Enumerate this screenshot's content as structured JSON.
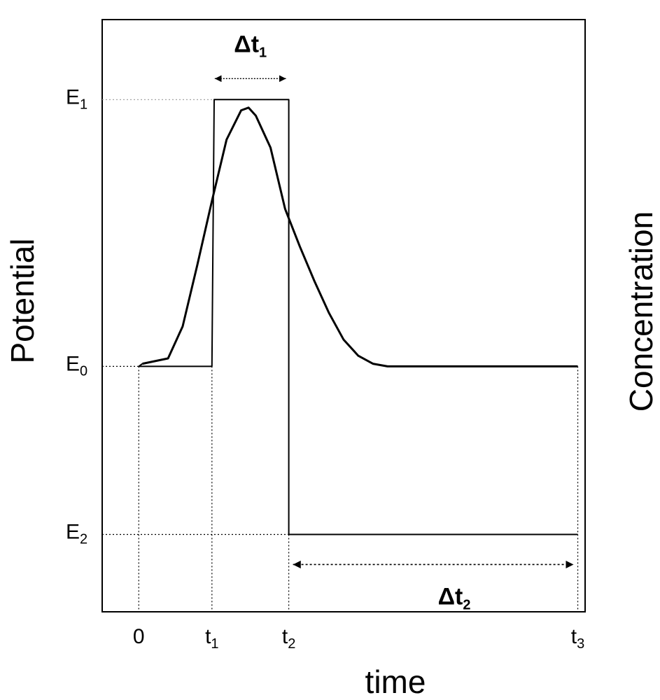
{
  "chart_data": {
    "type": "line",
    "title": "",
    "xlabel": "time",
    "ylabel_left": "Potential",
    "ylabel_right": "Concentration",
    "x_ticks": [
      {
        "key": "0",
        "base": "0",
        "sub": ""
      },
      {
        "key": "t1",
        "base": "t",
        "sub": "1"
      },
      {
        "key": "t2",
        "base": "t",
        "sub": "2"
      },
      {
        "key": "t3",
        "base": "t",
        "sub": "3"
      }
    ],
    "y_levels": [
      {
        "key": "E1",
        "base": "E",
        "sub": "1"
      },
      {
        "key": "E0",
        "base": "E",
        "sub": "0"
      },
      {
        "key": "E2",
        "base": "E",
        "sub": "2"
      }
    ],
    "intervals": [
      {
        "key": "dt1",
        "base": "Δt",
        "sub": "1",
        "from": "t1",
        "to": "t2"
      },
      {
        "key": "dt2",
        "base": "Δt",
        "sub": "2",
        "from": "t2",
        "to": "t3"
      }
    ],
    "series": [
      {
        "role": "potential",
        "points": [
          [
            0,
            0
          ],
          [
            1,
            0
          ],
          [
            1.03,
            1
          ],
          [
            2.05,
            1
          ],
          [
            2.05,
            -0.63
          ],
          [
            6.0,
            -0.63
          ]
        ]
      },
      {
        "role": "concentration",
        "points": [
          [
            0.05,
            0.01
          ],
          [
            0.4,
            0.03
          ],
          [
            0.6,
            0.15
          ],
          [
            0.8,
            0.38
          ],
          [
            1.0,
            0.62
          ],
          [
            1.2,
            0.85
          ],
          [
            1.4,
            0.96
          ],
          [
            1.5,
            0.97
          ],
          [
            1.6,
            0.94
          ],
          [
            1.8,
            0.82
          ],
          [
            2.0,
            0.59
          ],
          [
            2.2,
            0.45
          ],
          [
            2.4,
            0.32
          ],
          [
            2.6,
            0.2
          ],
          [
            2.8,
            0.1
          ],
          [
            3.0,
            0.04
          ],
          [
            3.2,
            0.01
          ],
          [
            3.4,
            0.0
          ],
          [
            4.0,
            0.0
          ],
          [
            5.0,
            0.0
          ],
          [
            6.0,
            0.0
          ]
        ]
      }
    ],
    "x_values": {
      "0": 0,
      "t1": 1,
      "t2": 2.05,
      "t3": 6.0
    },
    "y_values": {
      "E1": 1,
      "E0": 0,
      "E2": -0.63
    },
    "xlim": [
      -0.5,
      6.1
    ],
    "ylim": [
      -0.92,
      1.3
    ],
    "grid": false,
    "legend": "none"
  }
}
